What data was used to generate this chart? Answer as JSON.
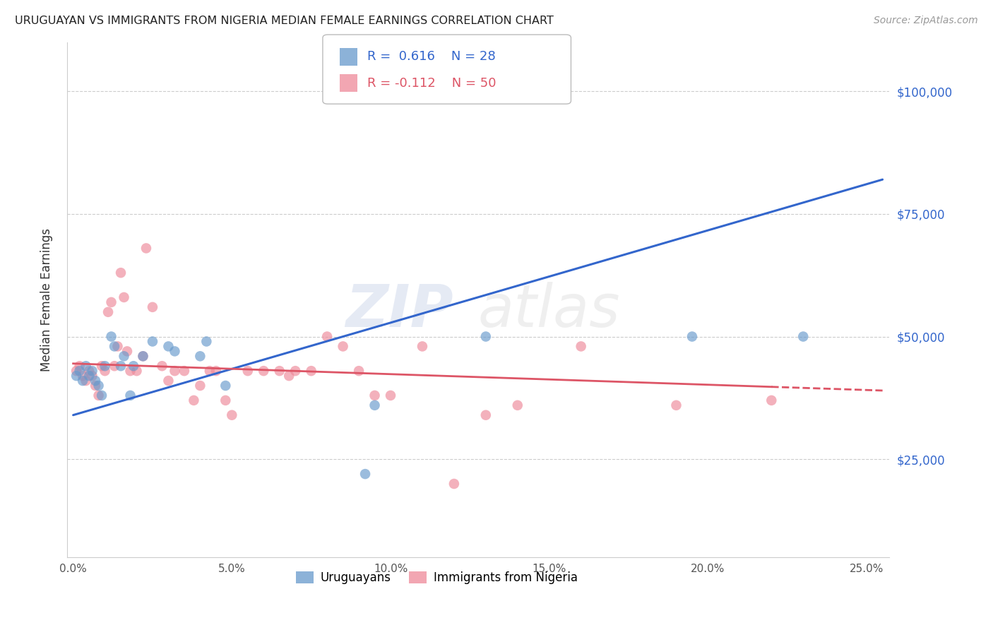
{
  "title": "URUGUAYAN VS IMMIGRANTS FROM NIGERIA MEDIAN FEMALE EARNINGS CORRELATION CHART",
  "source": "Source: ZipAtlas.com",
  "ylabel": "Median Female Earnings",
  "xlabel_ticks": [
    "0.0%",
    "5.0%",
    "10.0%",
    "15.0%",
    "20.0%",
    "25.0%"
  ],
  "xlabel_vals": [
    0.0,
    0.05,
    0.1,
    0.15,
    0.2,
    0.25
  ],
  "ylabel_ticks": [
    25000,
    50000,
    75000,
    100000
  ],
  "ylabel_labels": [
    "$25,000",
    "$50,000",
    "$75,000",
    "$100,000"
  ],
  "xlim": [
    -0.002,
    0.257
  ],
  "ylim": [
    5000,
    110000
  ],
  "uruguayan_R": 0.616,
  "uruguayan_N": 28,
  "nigeria_R": -0.112,
  "nigeria_N": 50,
  "uruguayan_color": "#6699cc",
  "nigeria_color": "#ee8899",
  "trendline_blue": "#3366cc",
  "trendline_pink": "#dd5566",
  "watermark_zip": "ZIP",
  "watermark_atlas": "atlas",
  "uruguayan_x": [
    0.001,
    0.002,
    0.003,
    0.004,
    0.005,
    0.006,
    0.007,
    0.008,
    0.009,
    0.01,
    0.012,
    0.013,
    0.015,
    0.016,
    0.018,
    0.019,
    0.022,
    0.025,
    0.03,
    0.032,
    0.04,
    0.042,
    0.048,
    0.095,
    0.13,
    0.195,
    0.23,
    0.092
  ],
  "uruguayan_y": [
    42000,
    43000,
    41000,
    44000,
    42000,
    43000,
    41000,
    40000,
    38000,
    44000,
    50000,
    48000,
    44000,
    46000,
    38000,
    44000,
    46000,
    49000,
    48000,
    47000,
    46000,
    49000,
    40000,
    36000,
    50000,
    50000,
    50000,
    22000
  ],
  "nigeria_x": [
    0.001,
    0.002,
    0.003,
    0.004,
    0.005,
    0.006,
    0.007,
    0.008,
    0.009,
    0.01,
    0.011,
    0.012,
    0.013,
    0.014,
    0.015,
    0.016,
    0.017,
    0.018,
    0.02,
    0.022,
    0.023,
    0.025,
    0.028,
    0.03,
    0.032,
    0.035,
    0.038,
    0.04,
    0.043,
    0.045,
    0.048,
    0.05,
    0.055,
    0.06,
    0.065,
    0.068,
    0.07,
    0.075,
    0.08,
    0.085,
    0.09,
    0.095,
    0.1,
    0.11,
    0.12,
    0.13,
    0.14,
    0.16,
    0.19,
    0.22
  ],
  "nigeria_y": [
    43000,
    44000,
    42000,
    41000,
    43000,
    42000,
    40000,
    38000,
    44000,
    43000,
    55000,
    57000,
    44000,
    48000,
    63000,
    58000,
    47000,
    43000,
    43000,
    46000,
    68000,
    56000,
    44000,
    41000,
    43000,
    43000,
    37000,
    40000,
    43000,
    43000,
    37000,
    34000,
    43000,
    43000,
    43000,
    42000,
    43000,
    43000,
    50000,
    48000,
    43000,
    38000,
    38000,
    48000,
    20000,
    34000,
    36000,
    48000,
    36000,
    37000
  ],
  "trendline_u_x0": 0.0,
  "trendline_u_x1": 0.255,
  "trendline_u_y0": 34000,
  "trendline_u_y1": 82000,
  "trendline_n_x0": 0.0,
  "trendline_n_x1": 0.255,
  "trendline_n_y0": 44500,
  "trendline_n_y1": 39000,
  "trendline_n_solid_end": 0.22,
  "trendline_n_dashed_start": 0.22
}
